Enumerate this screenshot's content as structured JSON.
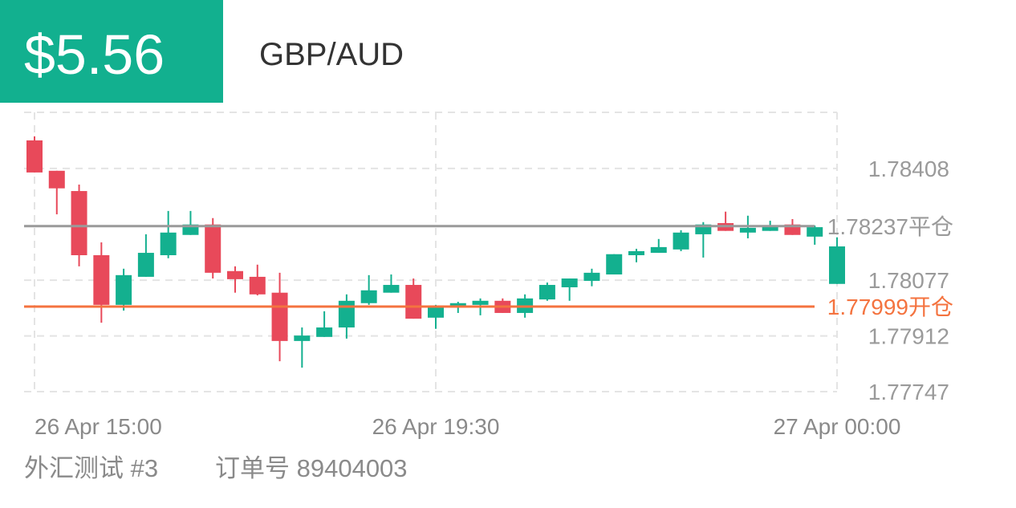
{
  "header": {
    "profit": "$5.56",
    "symbol": "GBP/AUD"
  },
  "chart_data": {
    "type": "candlestick",
    "categories": [
      "26 Apr  15:00",
      null,
      null,
      null,
      null,
      null,
      null,
      null,
      null,
      null,
      null,
      null,
      null,
      null,
      null,
      null,
      null,
      null,
      "26 Apr  19:30",
      null,
      null,
      null,
      null,
      null,
      null,
      null,
      null,
      null,
      null,
      null,
      null,
      null,
      null,
      null,
      null,
      null,
      "27 Apr  00:00"
    ],
    "open": [
      1.78491,
      1.78401,
      1.78341,
      1.78151,
      1.78004,
      1.78087,
      1.78151,
      1.78211,
      1.78242,
      1.78104,
      1.78087,
      1.7804,
      1.77897,
      1.77909,
      1.77937,
      1.78009,
      1.7804,
      1.78063,
      1.77966,
      1.77997,
      1.78004,
      1.78016,
      1.7798,
      1.7802,
      1.78056,
      1.78075,
      1.78094,
      1.78151,
      1.78158,
      1.78168,
      1.78213,
      1.78246,
      1.78218,
      1.78223,
      1.78242,
      1.78206,
      1.78066
    ],
    "high": [
      1.78503,
      1.78401,
      1.7836,
      1.78189,
      1.78111,
      1.78213,
      1.78282,
      1.78282,
      1.78261,
      1.78118,
      1.78123,
      1.78099,
      1.77937,
      1.77985,
      1.78035,
      1.78092,
      1.78094,
      1.78082,
      1.78004,
      1.78013,
      1.78023,
      1.78023,
      1.78035,
      1.7807,
      1.78082,
      1.78111,
      1.78154,
      1.7817,
      1.78199,
      1.78225,
      1.78249,
      1.7828,
      1.78268,
      1.78253,
      1.78258,
      1.78239,
      1.78204
    ],
    "low": [
      1.78396,
      1.78272,
      1.78118,
      1.77951,
      1.77987,
      1.78087,
      1.78142,
      1.78211,
      1.78082,
      1.7804,
      1.78032,
      1.77837,
      1.77818,
      1.77909,
      1.77904,
      1.78004,
      1.7804,
      1.77963,
      1.77933,
      1.7798,
      1.77973,
      1.7798,
      1.77966,
      1.78016,
      1.78016,
      1.78059,
      1.78094,
      1.7813,
      1.78158,
      1.78163,
      1.78144,
      1.78223,
      1.78201,
      1.78223,
      1.78211,
      1.78182,
      1.78066
    ],
    "close": [
      1.78396,
      1.78349,
      1.78151,
      1.78004,
      1.78092,
      1.78158,
      1.78218,
      1.78242,
      1.78099,
      1.7808,
      1.78035,
      1.77897,
      1.77913,
      1.77937,
      1.78016,
      1.78047,
      1.78063,
      1.77963,
      1.77997,
      1.78009,
      1.78016,
      1.7798,
      1.78023,
      1.78063,
      1.78082,
      1.78099,
      1.78154,
      1.78163,
      1.78175,
      1.78218,
      1.78242,
      1.78223,
      1.78232,
      1.78239,
      1.78211,
      1.78234,
      1.78177
    ],
    "up_color": "#13b08f",
    "down_color": "#e8495a",
    "ylim": [
      1.77747,
      1.78574
    ],
    "yticks": [
      1.78408,
      1.78077,
      1.77912,
      1.77747
    ],
    "grid": true,
    "lines": [
      {
        "value": 1.78237,
        "label": "1.78237平仓",
        "color": "#9a9a9a"
      },
      {
        "value": 1.77999,
        "label": "1.77999开仓",
        "color": "#f4733f"
      }
    ]
  },
  "footer": {
    "account": "外汇测试 #3",
    "order": "订单号 89404003"
  }
}
